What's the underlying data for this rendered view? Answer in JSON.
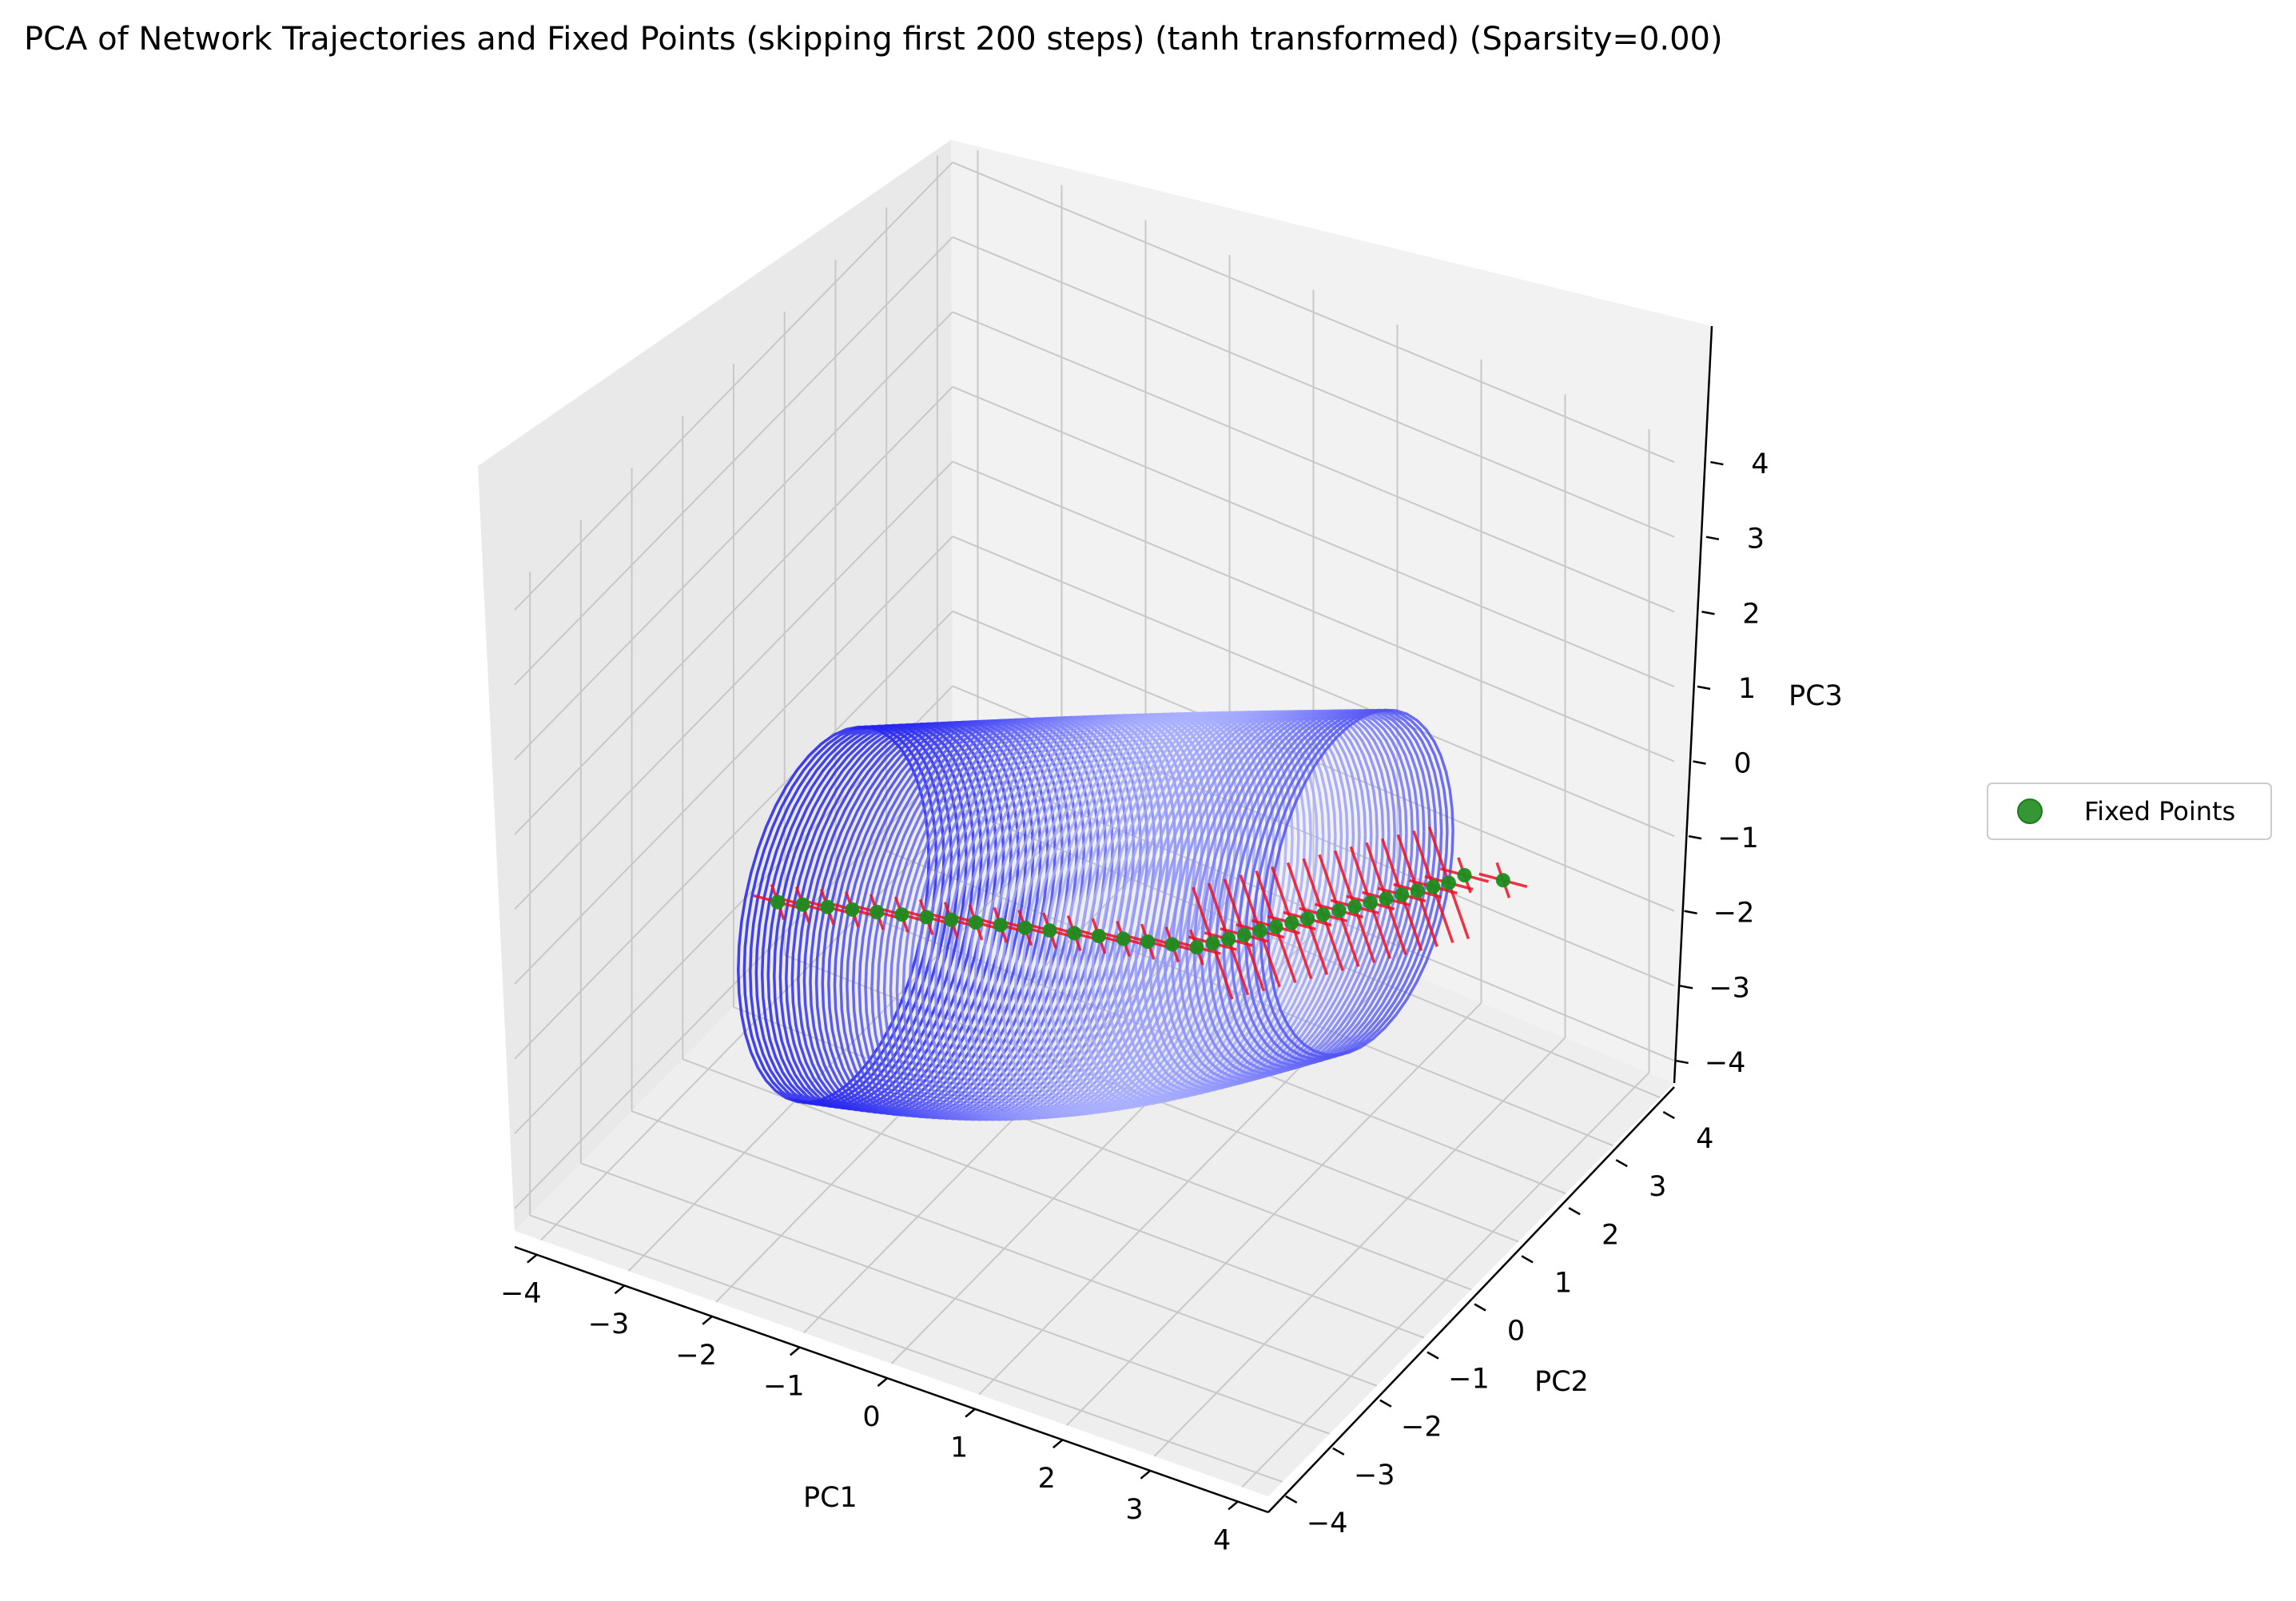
{
  "chart_data": {
    "type": "line",
    "projection": "3d",
    "title": "PCA of Network Trajectories and Fixed Points (skipping first 200 steps) (tanh transformed) (Sparsity=0.00)",
    "xlabel": "PC1",
    "ylabel": "PC2",
    "zlabel": "PC3",
    "xlim": [
      -4.3,
      4.3
    ],
    "ylim": [
      -4.3,
      4.3
    ],
    "zlim": [
      -4.3,
      4.3
    ],
    "xticks": [
      -4,
      -3,
      -2,
      -1,
      0,
      1,
      2,
      3,
      4
    ],
    "yticks": [
      -4,
      -3,
      -2,
      -1,
      0,
      1,
      2,
      3,
      4
    ],
    "zticks": [
      -4,
      -3,
      -2,
      -1,
      0,
      1,
      2,
      3,
      4
    ],
    "xtick_labels": [
      "−4",
      "−3",
      "−2",
      "−1",
      "0",
      "1",
      "2",
      "3",
      "4"
    ],
    "ytick_labels": [
      "−4",
      "−3",
      "−2",
      "−1",
      "0",
      "1",
      "2",
      "3",
      "4"
    ],
    "ztick_labels": [
      "−4",
      "−3",
      "−2",
      "−1",
      "0",
      "1",
      "2",
      "3",
      "4"
    ],
    "grid": true,
    "legend": {
      "placement": "right",
      "entries": [
        "Fixed Points"
      ]
    },
    "colors": {
      "trajectory_dark": "#2222ee",
      "trajectory_light": "#aab0ff",
      "fixed_points": "#1e8c1e",
      "eigen_lines": "#ee1122",
      "pane": "#f2f2f2",
      "grid": "#c8c8c8"
    },
    "trajectory": {
      "pc1_range": [
        -2.2,
        2.0
      ],
      "pc3_range": [
        -3.8,
        1.4
      ],
      "loops": 80
    },
    "fixed_points": [
      {
        "pc1": -2.5,
        "pc2": -2.2,
        "pc3": -0.6
      },
      {
        "pc1": -2.3,
        "pc2": -2.05,
        "pc3": -0.65
      },
      {
        "pc1": -2.1,
        "pc2": -1.9,
        "pc3": -0.7
      },
      {
        "pc1": -1.9,
        "pc2": -1.75,
        "pc3": -0.75
      },
      {
        "pc1": -1.7,
        "pc2": -1.6,
        "pc3": -0.8
      },
      {
        "pc1": -1.5,
        "pc2": -1.45,
        "pc3": -0.85
      },
      {
        "pc1": -1.3,
        "pc2": -1.3,
        "pc3": -0.9
      },
      {
        "pc1": -1.1,
        "pc2": -1.15,
        "pc3": -0.95
      },
      {
        "pc1": -0.9,
        "pc2": -1.0,
        "pc3": -1.0
      },
      {
        "pc1": -0.7,
        "pc2": -0.85,
        "pc3": -1.05
      },
      {
        "pc1": -0.5,
        "pc2": -0.7,
        "pc3": -1.1
      },
      {
        "pc1": -0.3,
        "pc2": -0.55,
        "pc3": -1.15
      },
      {
        "pc1": -0.1,
        "pc2": -0.4,
        "pc3": -1.2
      },
      {
        "pc1": 0.1,
        "pc2": -0.25,
        "pc3": -1.25
      },
      {
        "pc1": 0.3,
        "pc2": -0.1,
        "pc3": -1.3
      },
      {
        "pc1": 0.5,
        "pc2": 0.05,
        "pc3": -1.35
      },
      {
        "pc1": 0.7,
        "pc2": 0.2,
        "pc3": -1.4
      },
      {
        "pc1": 0.9,
        "pc2": 0.35,
        "pc3": -1.45
      },
      {
        "pc1": 1.0,
        "pc2": 0.5,
        "pc3": -1.45
      },
      {
        "pc1": 1.1,
        "pc2": 0.65,
        "pc3": -1.45
      },
      {
        "pc1": 1.2,
        "pc2": 0.8,
        "pc3": -1.45
      },
      {
        "pc1": 1.3,
        "pc2": 0.95,
        "pc3": -1.45
      },
      {
        "pc1": 1.4,
        "pc2": 1.1,
        "pc3": -1.45
      },
      {
        "pc1": 1.5,
        "pc2": 1.25,
        "pc3": -1.45
      },
      {
        "pc1": 1.6,
        "pc2": 1.4,
        "pc3": -1.45
      },
      {
        "pc1": 1.7,
        "pc2": 1.55,
        "pc3": -1.45
      },
      {
        "pc1": 1.8,
        "pc2": 1.7,
        "pc3": -1.45
      },
      {
        "pc1": 1.9,
        "pc2": 1.85,
        "pc3": -1.45
      },
      {
        "pc1": 2.0,
        "pc2": 2.0,
        "pc3": -1.45
      },
      {
        "pc1": 2.1,
        "pc2": 2.15,
        "pc3": -1.45
      },
      {
        "pc1": 2.2,
        "pc2": 2.3,
        "pc3": -1.45
      },
      {
        "pc1": 2.3,
        "pc2": 2.45,
        "pc3": -1.45
      },
      {
        "pc1": 2.4,
        "pc2": 2.6,
        "pc3": -1.45
      },
      {
        "pc1": 2.5,
        "pc2": 2.75,
        "pc3": -1.45
      },
      {
        "pc1": 2.6,
        "pc2": 2.9,
        "pc3": -1.4
      },
      {
        "pc1": 3.0,
        "pc2": 3.0,
        "pc3": -1.35
      }
    ]
  }
}
